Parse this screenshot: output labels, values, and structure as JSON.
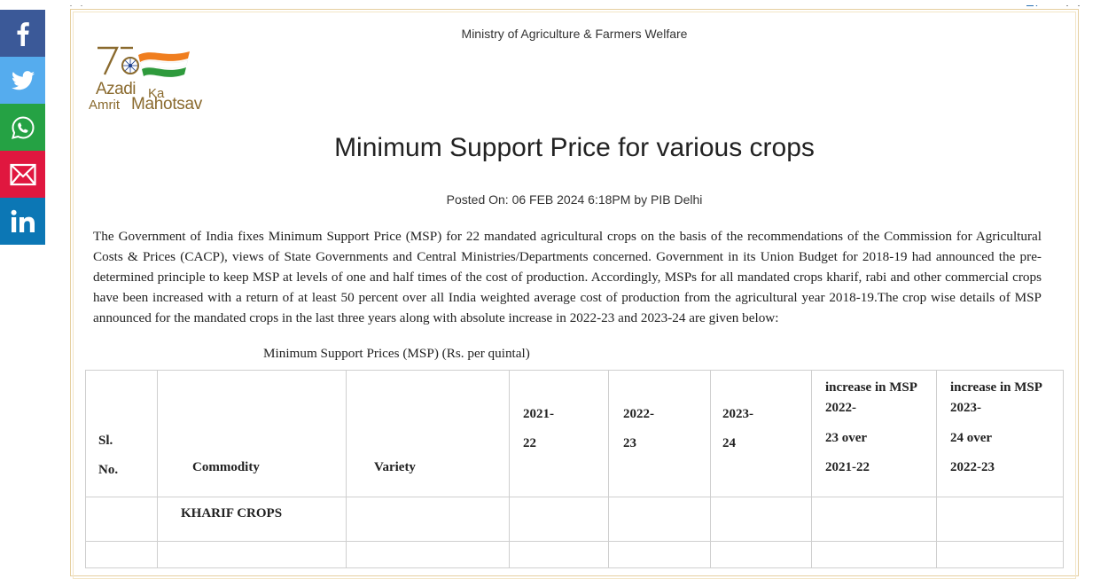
{
  "share": {
    "facebook_icon": "facebook-icon",
    "twitter_icon": "twitter-icon",
    "whatsapp_icon": "whatsapp-icon",
    "email_icon": "email-icon",
    "linkedin_icon": "linkedin-icon",
    "colors": {
      "facebook": "#3b5998",
      "twitter": "#55acee",
      "whatsapp": "#25a244",
      "email": "#e0173f",
      "linkedin": "#0c77b5"
    }
  },
  "release": {
    "ministry": "Ministry of Agriculture & Farmers Welfare",
    "logo": {
      "azadi": "Azadi",
      "ka": "Ka",
      "amrit": "Amrit",
      "mahotsav": "Mahotsav",
      "number": "75"
    },
    "title": "Minimum Support Price for various crops",
    "posted": "Posted On: 06 FEB 2024 6:18PM by PIB Delhi",
    "paragraph": "The Government of India fixes Minimum Support Price (MSP) for 22 mandated agricultural crops on the basis of the recommendations of the Commission for Agricultural Costs & Prices (CACP), views of State Governments and Central Ministries/Departments concerned. Government in its Union Budget for 2018-19 had announced the pre- determined principle to keep MSP at levels of one and half times of the cost of production. Accordingly, MSPs for all mandated crops kharif, rabi and other commercial crops have been increased with a return of at least 50 percent over all India weighted average cost of production from the agricultural year 2018-19.The crop wise details of MSP announced for the mandated crops in the last three years along with absolute increase in 2022-23 and 2023-24 are given below:",
    "table_caption": "Minimum Support Prices (MSP) (Rs. per quintal)"
  },
  "table": {
    "headers": {
      "sl": [
        "Sl.",
        "No."
      ],
      "commodity": "Commodity",
      "variety": "Variety",
      "y2021": [
        "2021-",
        "22"
      ],
      "y2022": [
        "2022-",
        "23"
      ],
      "y2023": [
        "2023-",
        "24"
      ],
      "inc1": [
        "increase in MSP",
        "2022-",
        "23 over",
        "2021-22"
      ],
      "inc2": [
        "increase in MSP",
        "2023-",
        "24 over",
        "2022-23"
      ]
    },
    "section_label": "KHARIF CROPS"
  }
}
